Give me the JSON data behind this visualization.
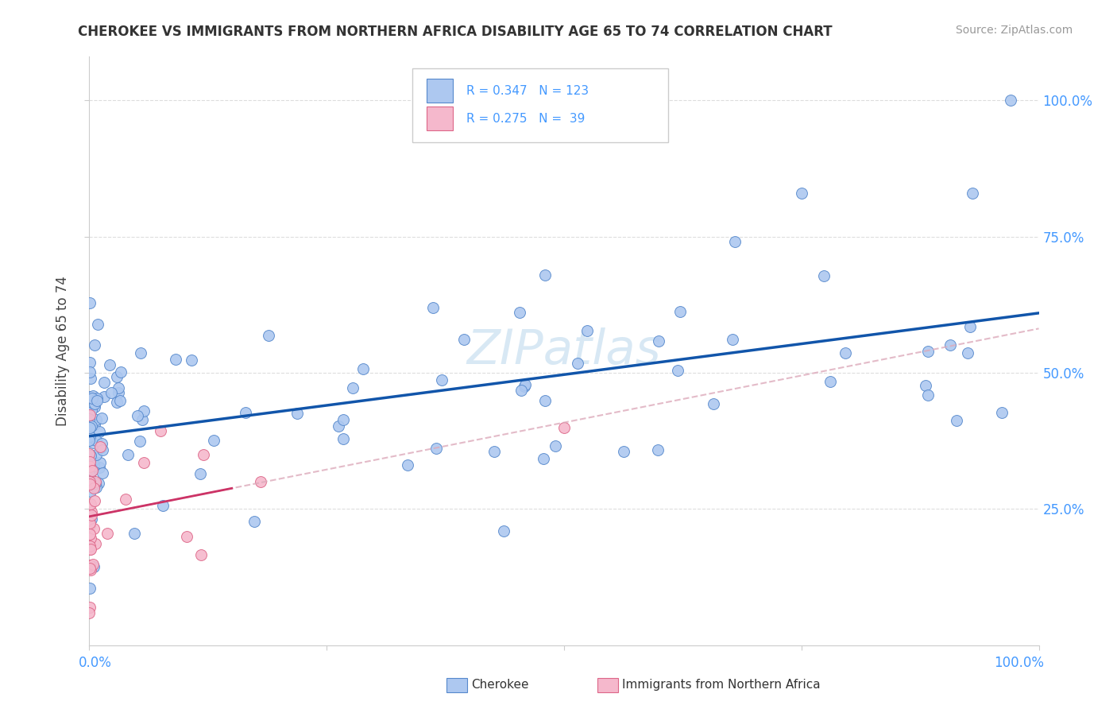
{
  "title": "CHEROKEE VS IMMIGRANTS FROM NORTHERN AFRICA DISABILITY AGE 65 TO 74 CORRELATION CHART",
  "source": "Source: ZipAtlas.com",
  "ylabel": "Disability Age 65 to 74",
  "legend_entries": [
    {
      "label": "Cherokee",
      "R": "0.347",
      "N": "123",
      "dot_color": "#adc8f0",
      "dot_edge": "#5588cc",
      "line_color": "#1155aa"
    },
    {
      "label": "Immigrants from Northern Africa",
      "R": "0.275",
      "N": "39",
      "dot_color": "#f5b8cc",
      "dot_edge": "#dd6688",
      "line_color": "#cc3366"
    }
  ],
  "background_color": "#ffffff",
  "grid_color": "#dddddd",
  "watermark_text": "ZIPatlas",
  "watermark_color": "#c8dff0",
  "axis_label_color": "#4499ff",
  "title_color": "#333333",
  "source_color": "#999999",
  "xlim": [
    0.0,
    1.0
  ],
  "ylim": [
    0.0,
    1.08
  ],
  "yticks": [
    0.25,
    0.5,
    0.75,
    1.0
  ],
  "ytick_labels": [
    "25.0%",
    "50.0%",
    "75.0%",
    "100.0%"
  ]
}
